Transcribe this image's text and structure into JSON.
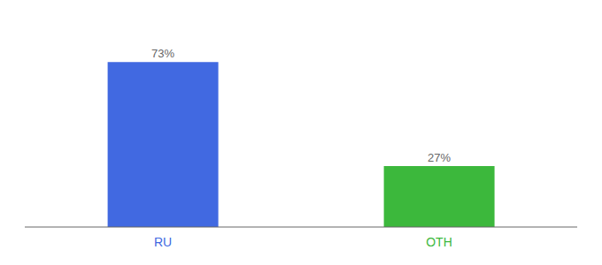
{
  "chart_data": {
    "type": "bar",
    "categories": [
      "RU",
      "OTH"
    ],
    "values": [
      73,
      27
    ],
    "value_labels": [
      "73%",
      "27%"
    ],
    "colors": [
      "#4169e1",
      "#3cb83c"
    ],
    "ylim": [
      0,
      88
    ],
    "data_labels": true,
    "tick_labels": "x",
    "grid": false
  }
}
